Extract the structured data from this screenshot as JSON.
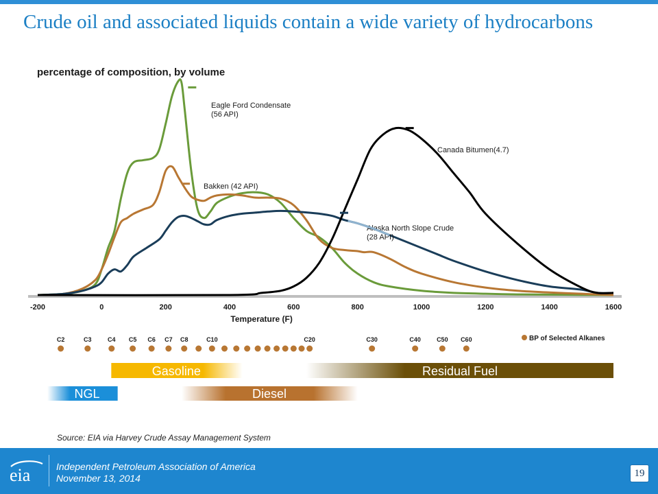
{
  "slide": {
    "title": "Crude oil and associated liquids contain a wide variety of hydrocarbons",
    "source": "Source: EIA via Harvey Crude Assay Management System",
    "footer_line1": "Independent Petroleum Association of America",
    "footer_line2": "November 13, 2014",
    "page_number": "19",
    "logo_text": "eia",
    "accent_color": "#1e86cf",
    "title_color": "#1b7fc4"
  },
  "chart_data": {
    "type": "line",
    "title": "percentage of composition, by volume",
    "xlabel": "Temperature (F)",
    "xlim": [
      -200,
      1600
    ],
    "ylim": [
      0,
      100
    ],
    "x_ticks": [
      -200,
      0,
      200,
      400,
      600,
      800,
      1000,
      1200,
      1400,
      1600
    ],
    "grid": false,
    "series": [
      {
        "name": "Eagle Ford Condensate",
        "label_lines": [
          "Eagle Ford Condensate",
          "(56 API)"
        ],
        "color": "#6a9b3a",
        "x": [
          -200,
          -120,
          -60,
          -20,
          0,
          20,
          40,
          60,
          80,
          100,
          130,
          160,
          180,
          200,
          220,
          240,
          250,
          260,
          280,
          300,
          320,
          340,
          360,
          400,
          440,
          480,
          520,
          560,
          600,
          640,
          680,
          720,
          760,
          800,
          850,
          900,
          1000,
          1100,
          1200,
          1300,
          1400,
          1500,
          1600
        ],
        "values": [
          0,
          0.5,
          2,
          5,
          12,
          22,
          30,
          45,
          57,
          62,
          63,
          64,
          68,
          80,
          93,
          100,
          99,
          86,
          58,
          40,
          36,
          39,
          43,
          46,
          47.6,
          48,
          47,
          43,
          36,
          30,
          27,
          22,
          15,
          10,
          6,
          4,
          2,
          1,
          0.6,
          0.3,
          0.2,
          0.1,
          0
        ]
      },
      {
        "name": "Bakken",
        "label_lines": [
          "Bakken (42 API)"
        ],
        "color": "#b87733",
        "x": [
          -200,
          -120,
          -60,
          -20,
          0,
          20,
          40,
          60,
          80,
          100,
          130,
          160,
          180,
          200,
          220,
          240,
          260,
          280,
          300,
          320,
          340,
          360,
          400,
          440,
          480,
          520,
          560,
          600,
          640,
          680,
          720,
          760,
          800,
          820,
          850,
          900,
          950,
          1000,
          1100,
          1200,
          1300,
          1400,
          1500,
          1600
        ],
        "values": [
          0,
          0.5,
          3,
          7,
          12,
          19,
          27,
          34,
          36,
          38,
          40,
          42,
          48,
          58,
          60,
          55,
          50,
          46,
          44.5,
          44,
          45.5,
          46.5,
          47,
          46.5,
          45.5,
          45.5,
          45,
          42,
          35,
          26,
          22,
          21,
          20.5,
          20,
          20,
          17,
          13,
          10,
          6,
          3.5,
          2,
          1.2,
          0.6,
          0
        ]
      },
      {
        "name": "Alaska North Slope Crude",
        "label_lines": [
          "Alaska North Slope Crude",
          "(28 API)"
        ],
        "color": "#1a3d59",
        "x": [
          -200,
          -120,
          -60,
          -20,
          0,
          20,
          40,
          60,
          80,
          100,
          140,
          180,
          200,
          220,
          240,
          260,
          280,
          300,
          320,
          340,
          360,
          400,
          440,
          480,
          520,
          560,
          600,
          640,
          680,
          720,
          760,
          800,
          850,
          900,
          950,
          1000,
          1050,
          1100,
          1200,
          1300,
          1400,
          1500,
          1550,
          1600
        ],
        "values": [
          0,
          0.5,
          2,
          4,
          6,
          10,
          12,
          11,
          14,
          18,
          22,
          26,
          30,
          34,
          36.5,
          37,
          36,
          34.5,
          33,
          33,
          35,
          37,
          38,
          38.5,
          39,
          39.3,
          39,
          38.6,
          38,
          37,
          35,
          33.5,
          31,
          28,
          25,
          22,
          19,
          16,
          11,
          7,
          4,
          2.5,
          1,
          1
        ]
      },
      {
        "name": "Canada Bitumen(4.7)",
        "label_lines": [
          "Canada Bitumen(4.7)"
        ],
        "color": "#000000",
        "x": [
          -200,
          400,
          500,
          560,
          600,
          640,
          680,
          720,
          760,
          800,
          840,
          880,
          920,
          960,
          1000,
          1050,
          1100,
          1150,
          1200,
          1300,
          1400,
          1500,
          1550,
          1600
        ],
        "values": [
          0,
          0,
          1,
          2,
          4,
          8,
          15,
          26,
          40,
          54,
          68,
          75,
          78,
          77,
          73,
          66,
          57,
          48,
          38,
          24,
          12,
          3.5,
          1,
          1
        ]
      }
    ],
    "alkanes": {
      "legend": "BP of Selected Alkanes",
      "color": "#b87733",
      "labeled": [
        {
          "label": "C2",
          "bp": -128
        },
        {
          "label": "C3",
          "bp": -44
        },
        {
          "label": "C4",
          "bp": 31
        },
        {
          "label": "C5",
          "bp": 97
        },
        {
          "label": "C6",
          "bp": 156
        },
        {
          "label": "C7",
          "bp": 209
        },
        {
          "label": "C8",
          "bp": 258
        },
        {
          "label": "C10",
          "bp": 345
        },
        {
          "label": "C20",
          "bp": 650
        },
        {
          "label": "C30",
          "bp": 845
        },
        {
          "label": "C40",
          "bp": 980
        },
        {
          "label": "C50",
          "bp": 1065
        },
        {
          "label": "C60",
          "bp": 1140
        }
      ],
      "unlabeled_bp": [
        303,
        384,
        421,
        455,
        488,
        518,
        547,
        574,
        600,
        625
      ]
    },
    "bands": [
      {
        "label": "Gasoline",
        "from": 30,
        "to": 440,
        "color": "#f6b800",
        "fade": "right",
        "row": 1
      },
      {
        "label": "Residual Fuel",
        "from": 640,
        "to": 1600,
        "color": "#6b4f08",
        "fade": "left",
        "row": 1
      },
      {
        "label": "NGL",
        "from": -170,
        "to": 50,
        "color": "#1b8fd9",
        "fade": "left",
        "row": 2
      },
      {
        "label": "Diesel",
        "from": 250,
        "to": 800,
        "color": "#b8722f",
        "fade": "both",
        "row": 2
      }
    ]
  }
}
